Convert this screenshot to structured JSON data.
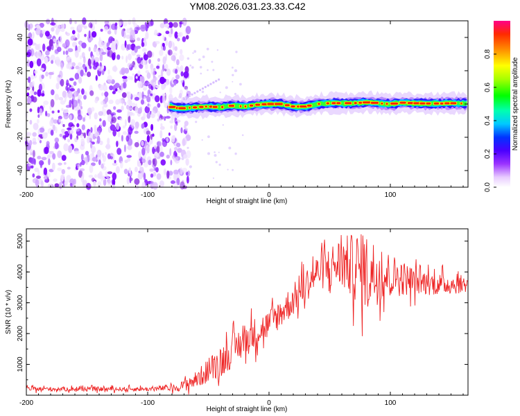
{
  "title": "YM08.2026.031.23.33.C42",
  "chart_data": [
    {
      "type": "heatmap",
      "name": "spectrogram",
      "xlabel": "Height of straight line (km)",
      "ylabel": "Frequency (Hz)",
      "xlim": [
        -200,
        164
      ],
      "ylim": [
        -50,
        50
      ],
      "xticks": [
        -200,
        -100,
        0,
        100
      ],
      "yticks": [
        -40,
        -20,
        0,
        20,
        40
      ],
      "xtick_labels": [
        "-200",
        "-100",
        "0",
        "100"
      ],
      "ytick_labels": [
        "-40",
        "-20",
        "0",
        "20",
        "40"
      ],
      "noise_region_x": [
        -200,
        -73
      ],
      "signal_start_x": -82,
      "ridge": {
        "x": [
          -82,
          -75,
          -70,
          -60,
          -50,
          -40,
          -30,
          -20,
          -10,
          0,
          10,
          20,
          30,
          40,
          50,
          60,
          70,
          80,
          90,
          100,
          110,
          120,
          130,
          140,
          150,
          164
        ],
        "freq": [
          -1.5,
          -2.5,
          -2.5,
          -2,
          -1.5,
          -2,
          -1,
          -1.5,
          -0.5,
          0,
          0,
          -1.5,
          -1.5,
          0,
          0.5,
          0.5,
          0.5,
          1,
          0.5,
          0,
          0.8,
          0.5,
          0.3,
          0.3,
          0.5,
          0.3
        ]
      }
    },
    {
      "type": "colorbar",
      "name": "amplitude-colorbar",
      "label": "Normalized spectral amplitude",
      "range": [
        0,
        1
      ],
      "ticks": [
        0.0,
        0.2,
        0.4,
        0.6,
        0.8
      ],
      "tick_labels": [
        "0.0",
        "0.2",
        "0.4",
        "0.6",
        "0.8"
      ]
    },
    {
      "type": "line",
      "name": "snr-profile",
      "xlabel": "Height of straight line (km)",
      "ylabel": "SNR (10 * v/v)",
      "xlim": [
        -200,
        164
      ],
      "ylim": [
        0,
        5400
      ],
      "xticks": [
        -200,
        -100,
        0,
        100
      ],
      "yticks": [
        1000,
        2000,
        3000,
        4000,
        5000
      ],
      "xtick_labels": [
        "-200",
        "-100",
        "0",
        "100"
      ],
      "ytick_labels": [
        "1000",
        "2000",
        "3000",
        "4000",
        "5000"
      ],
      "color": "#ee2222",
      "envelope": {
        "x": [
          -200,
          -150,
          -100,
          -75,
          -60,
          -40,
          -20,
          0,
          20,
          40,
          60,
          80,
          100,
          120,
          140,
          164
        ],
        "mean": [
          200,
          200,
          200,
          250,
          500,
          1100,
          1800,
          2300,
          3100,
          4000,
          4300,
          4000,
          3900,
          3700,
          3600,
          3600
        ],
        "spread": [
          90,
          90,
          90,
          150,
          350,
          650,
          700,
          600,
          650,
          700,
          1100,
          1600,
          900,
          550,
          450,
          350
        ]
      }
    }
  ]
}
